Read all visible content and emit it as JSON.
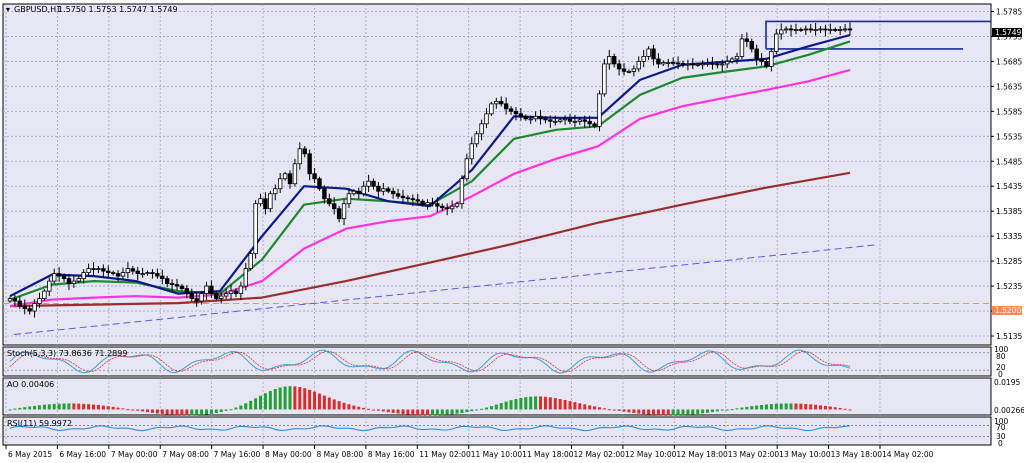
{
  "header": {
    "symbol": "GBPUSD,H1",
    "ohlc": "1.5750 1.5753 1.5747 1.5749"
  },
  "price_badges": {
    "current": "1.5749",
    "hline": "1.5200"
  },
  "indicators": {
    "stoch": "Stoch(5,3,3) 73.8636 71.2899",
    "ao": "AO 0.00406",
    "rsi": "RSI(11) 59.9972"
  },
  "axis_right": {
    "stoch_ticks": [
      "100",
      "80",
      "20",
      "0"
    ],
    "ao_ticks": [
      "0.0195",
      "0.00266"
    ],
    "rsi_ticks": [
      "100",
      "70",
      "30",
      "0"
    ]
  },
  "colors": {
    "grid": "#9ea0c8",
    "bull_candle": "#ffffff",
    "bear_candle": "#000000",
    "ema_fast": "#0b1a8a",
    "ema_mid": "#1c8a2c",
    "ma_magenta": "#ff33dd",
    "ma_brown": "#9a2d2d",
    "trend_dash": "#5a5ae0",
    "hline": "#ff8855",
    "ao_up": "#22a033",
    "ao_down": "#e02a2a",
    "rsi": "#2e8ce0"
  },
  "chart_data": {
    "type": "candlestick",
    "x_tick_labels": [
      "6 May 2015",
      "6 May 16:00",
      "7 May 00:00",
      "7 May 08:00",
      "7 May 16:00",
      "8 May 00:00",
      "8 May 08:00",
      "8 May 16:00",
      "11 May 02:00",
      "11 May 10:00",
      "11 May 18:00",
      "12 May 02:00",
      "12 May 10:00",
      "12 May 18:00",
      "13 May 02:00",
      "13 May 10:00",
      "13 May 18:00",
      "14 May 02:00"
    ],
    "y_tick_labels": [
      "1.5785",
      "1.5735",
      "1.5685",
      "1.5635",
      "1.5585",
      "1.5535",
      "1.5485",
      "1.5435",
      "1.5385",
      "1.5335",
      "1.5285",
      "1.5235",
      "1.5185",
      "1.5135"
    ],
    "ylim": [
      1.5117,
      1.58
    ],
    "levels": {
      "horizontal": 1.52,
      "box_high": 1.5765,
      "box_low": 1.571
    },
    "close_series": [
      1.521,
      1.5205,
      1.5195,
      1.519,
      1.5185,
      1.52,
      1.521,
      1.5225,
      1.5245,
      1.526,
      1.5255,
      1.525,
      1.524,
      1.5245,
      1.525,
      1.5262,
      1.527,
      1.5268,
      1.527,
      1.5265,
      1.5262,
      1.526,
      1.5255,
      1.5262,
      1.527,
      1.5265,
      1.526,
      1.526,
      1.5262,
      1.526,
      1.5255,
      1.525,
      1.524,
      1.5238,
      1.5235,
      1.523,
      1.522,
      1.521,
      1.5205,
      1.522,
      1.5235,
      1.522,
      1.521,
      1.5215,
      1.522,
      1.5225,
      1.522,
      1.5235,
      1.527,
      1.53,
      1.54,
      1.541,
      1.539,
      1.542,
      1.543,
      1.545,
      1.546,
      1.544,
      1.548,
      1.551,
      1.55,
      1.546,
      1.545,
      1.543,
      1.541,
      1.54,
      1.539,
      1.537,
      1.54,
      1.542,
      1.5425,
      1.542,
      1.5435,
      1.5445,
      1.5435,
      1.5425,
      1.543,
      1.5425,
      1.542,
      1.5415,
      1.5412,
      1.541,
      1.5408,
      1.5405,
      1.5398,
      1.5402,
      1.54,
      1.5395,
      1.5392,
      1.539,
      1.5395,
      1.54,
      1.545,
      1.549,
      1.552,
      1.554,
      1.556,
      1.558,
      1.56,
      1.5605,
      1.56,
      1.559,
      1.5585,
      1.558,
      1.5575,
      1.557,
      1.557,
      1.5575,
      1.557,
      1.5568,
      1.5565,
      1.5565,
      1.5568,
      1.557,
      1.5565,
      1.5565,
      1.5568,
      1.5565,
      1.556,
      1.5555,
      1.562,
      1.568,
      1.5695,
      1.568,
      1.567,
      1.5665,
      1.5665,
      1.567,
      1.5685,
      1.5695,
      1.571,
      1.569,
      1.568,
      1.5683,
      1.5683,
      1.5682,
      1.5681,
      1.568,
      1.568,
      1.5678,
      1.5679,
      1.568,
      1.5681,
      1.568,
      1.5678,
      1.568,
      1.5685,
      1.569,
      1.5695,
      1.573,
      1.5725,
      1.571,
      1.569,
      1.5685,
      1.5675,
      1.5705,
      1.574,
      1.5748,
      1.575,
      1.5748,
      1.5749,
      1.5748,
      1.575,
      1.5748,
      1.5749,
      1.575,
      1.5748,
      1.5749,
      1.5748,
      1.5749,
      1.575,
      1.5749
    ],
    "ema_fast": {
      "x": [
        0,
        0.05,
        0.1,
        0.15,
        0.2,
        0.25,
        0.3,
        0.35,
        0.4,
        0.45,
        0.5,
        0.55,
        0.6,
        0.65,
        0.7,
        0.75,
        0.8,
        0.85,
        0.9,
        0.95,
        1
      ],
      "y": [
        1.5215,
        1.5258,
        1.5255,
        1.5245,
        1.522,
        1.5225,
        1.5335,
        1.5435,
        1.543,
        1.5405,
        1.5395,
        1.5468,
        1.5575,
        1.5572,
        1.5572,
        1.5648,
        1.5678,
        1.5684,
        1.569,
        1.5715,
        1.5738
      ]
    },
    "ema_mid": {
      "x": [
        0,
        0.05,
        0.1,
        0.15,
        0.2,
        0.25,
        0.3,
        0.35,
        0.4,
        0.45,
        0.5,
        0.55,
        0.6,
        0.65,
        0.7,
        0.75,
        0.8,
        0.85,
        0.9,
        0.95,
        1
      ],
      "y": [
        1.5208,
        1.5238,
        1.5245,
        1.5242,
        1.5225,
        1.522,
        1.5288,
        1.5398,
        1.541,
        1.5405,
        1.5398,
        1.5445,
        1.553,
        1.5548,
        1.5555,
        1.5618,
        1.5652,
        1.5664,
        1.5675,
        1.5698,
        1.5725
      ]
    },
    "ma_magenta": {
      "x": [
        0,
        0.05,
        0.1,
        0.15,
        0.2,
        0.25,
        0.3,
        0.35,
        0.4,
        0.45,
        0.5,
        0.55,
        0.6,
        0.65,
        0.7,
        0.75,
        0.8,
        0.85,
        0.9,
        0.95,
        1
      ],
      "y": [
        1.5195,
        1.5208,
        1.5212,
        1.5215,
        1.5212,
        1.5218,
        1.5245,
        1.531,
        1.535,
        1.5365,
        1.5375,
        1.5415,
        1.546,
        1.549,
        1.5515,
        1.557,
        1.5595,
        1.5612,
        1.5628,
        1.5645,
        1.5668
      ]
    },
    "ma_brown": {
      "x": [
        0,
        0.1,
        0.2,
        0.3,
        0.4,
        0.5,
        0.6,
        0.7,
        0.8,
        0.9,
        1
      ],
      "y": [
        1.5195,
        1.5198,
        1.5201,
        1.5212,
        1.5245,
        1.5282,
        1.532,
        1.5362,
        1.5398,
        1.5432,
        1.5462
      ]
    },
    "trend_dash": {
      "x": [
        0,
        1
      ],
      "y": [
        1.5138,
        1.5318
      ]
    },
    "stoch_ylim": [
      0,
      100
    ],
    "ao_ylim": [
      -0.003,
      0.0195
    ],
    "rsi_ylim": [
      0,
      100
    ]
  }
}
